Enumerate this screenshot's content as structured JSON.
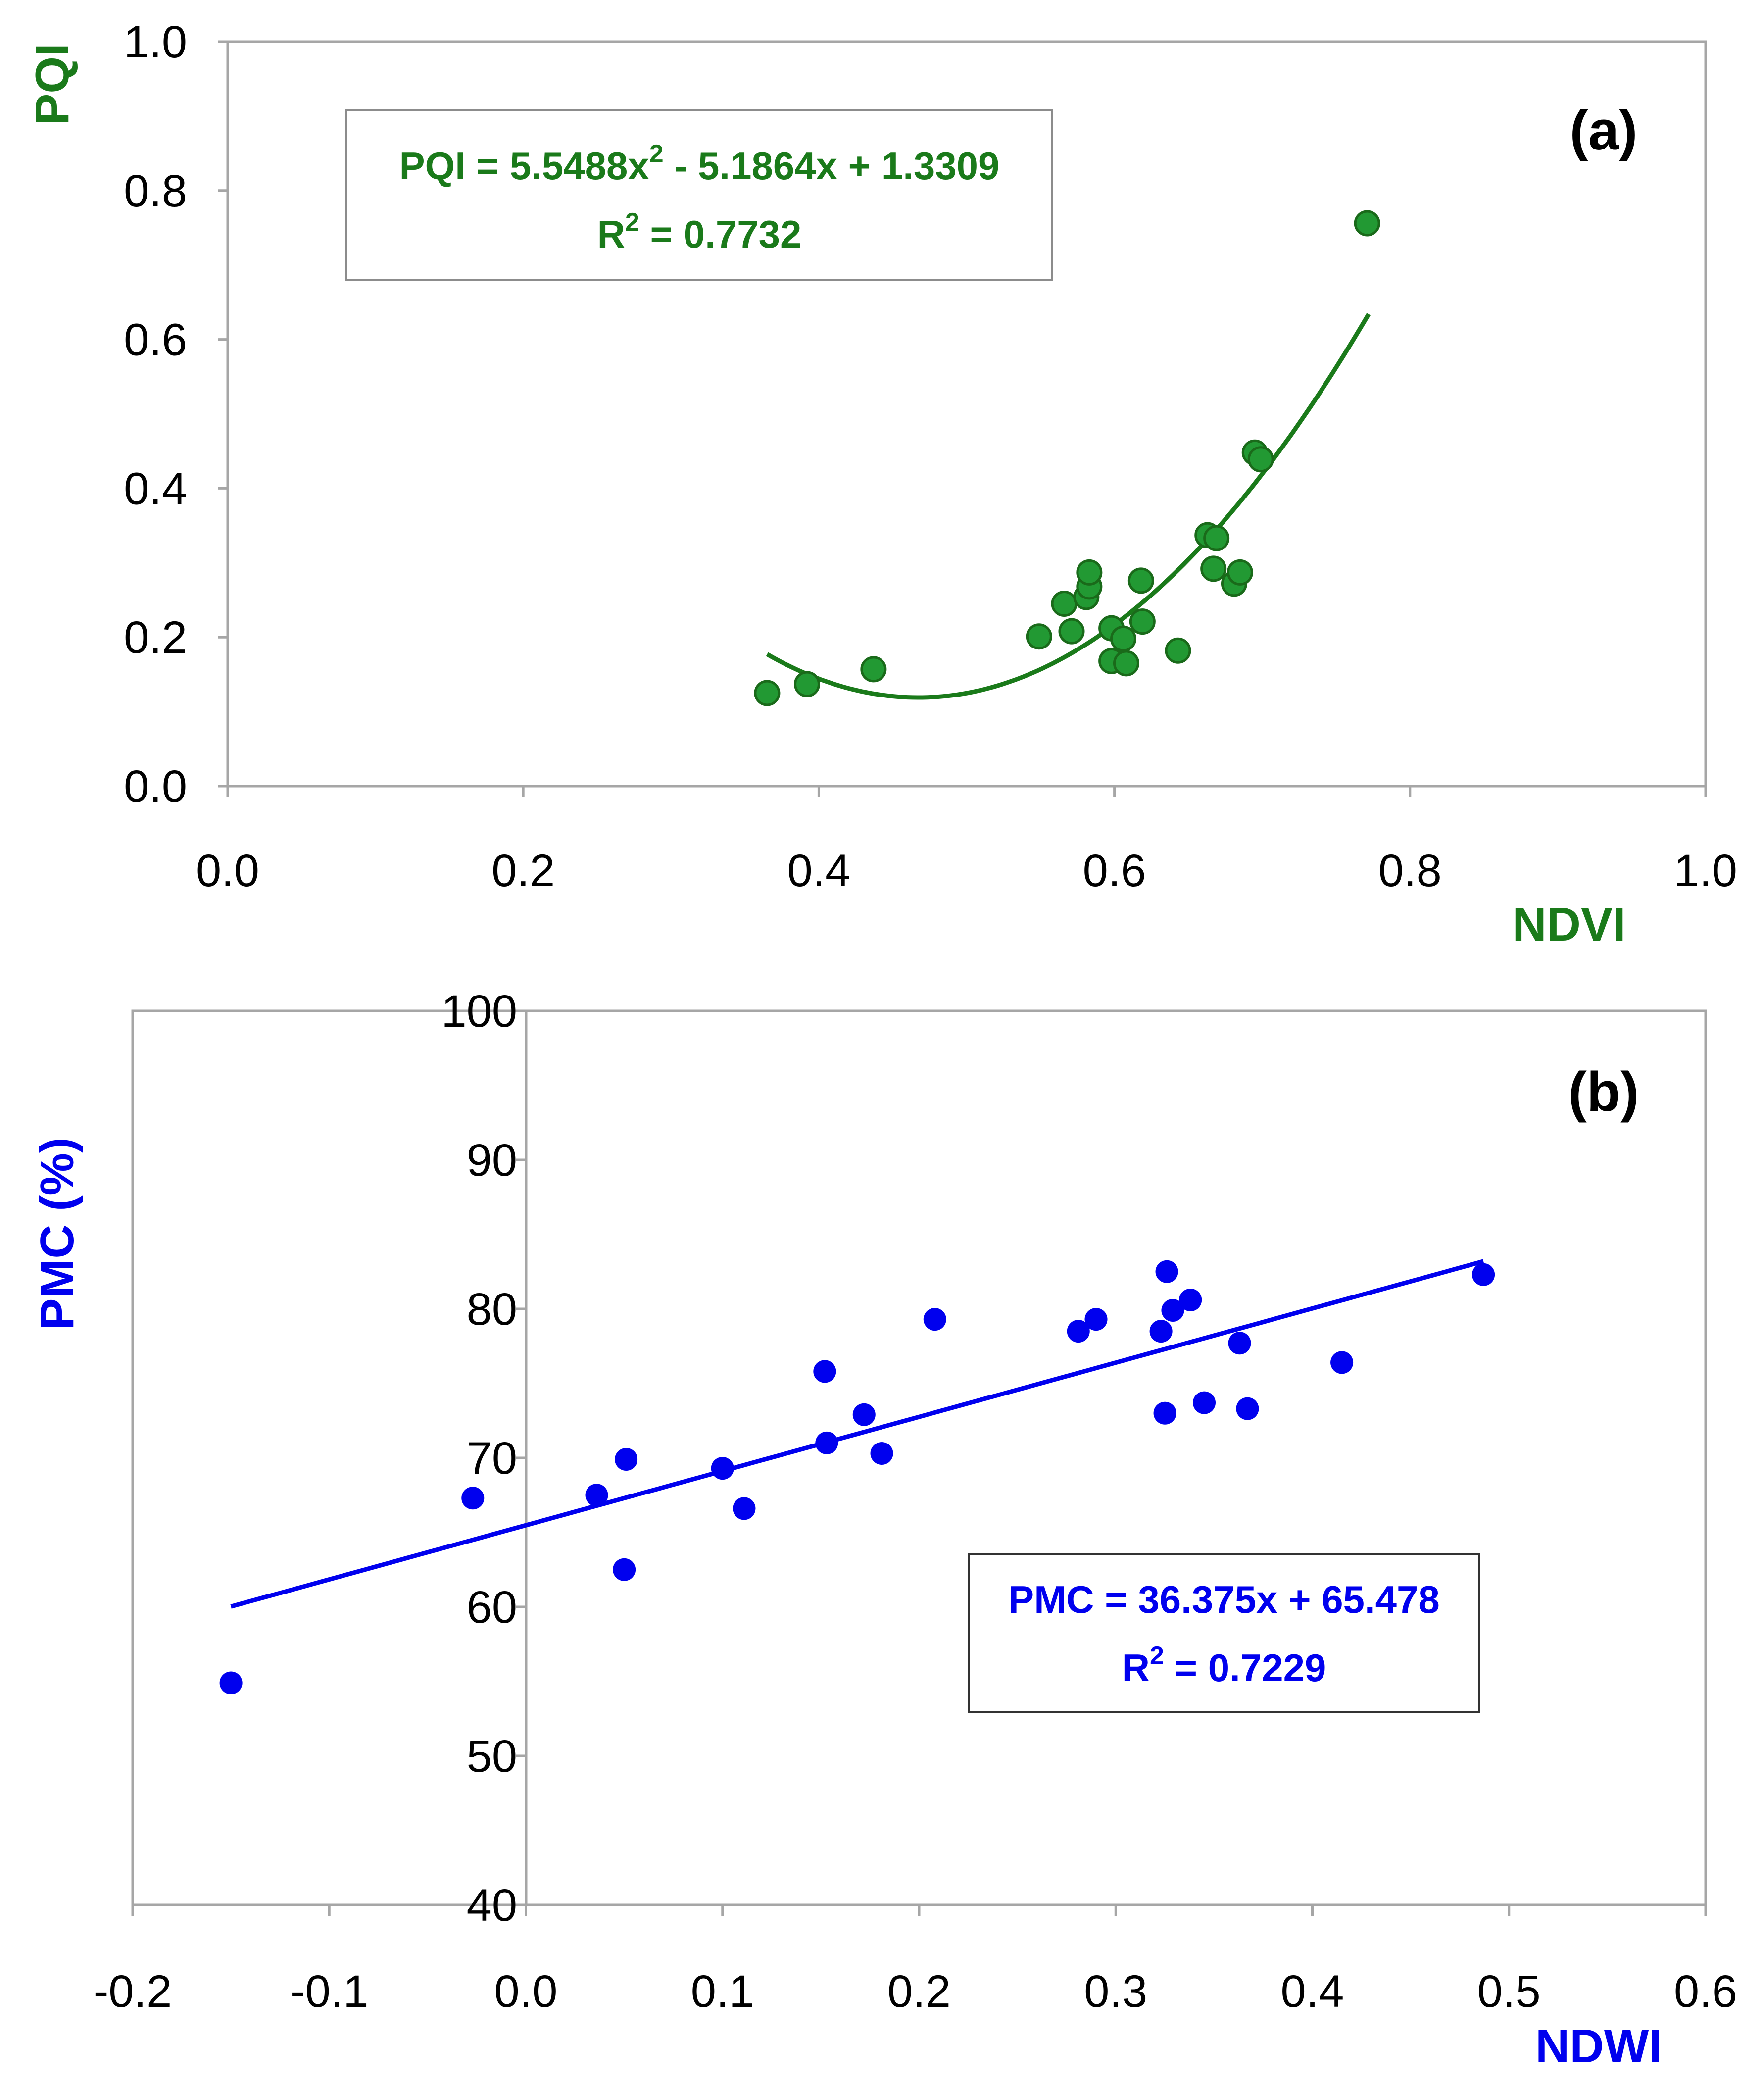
{
  "chart_data": [
    {
      "type": "scatter",
      "panel_label": "(a)",
      "xlabel": "NDVI",
      "ylabel": "PQI",
      "xlim": [
        0,
        1
      ],
      "ylim": [
        0,
        1
      ],
      "x_ticks": [
        "0.0",
        "0.2",
        "0.4",
        "0.6",
        "0.8",
        "1.0"
      ],
      "y_ticks": [
        "0.0",
        "0.2",
        "0.4",
        "0.6",
        "0.8",
        "1.0"
      ],
      "color": "#1a7a1a",
      "marker_fill": "#229933",
      "equation": {
        "line1_prefix": "PQI = 5.5488x",
        "line1_sup": "2",
        "line1_suffix": " - 5.1864x + 1.3309",
        "line2_prefix": "R",
        "line2_sup": "2",
        "line2_suffix": " = 0.7732"
      },
      "fit": {
        "kind": "polynomial",
        "coefficients": [
          5.5488,
          -5.1864,
          1.3309
        ],
        "x_range": [
          0.365,
          0.772
        ]
      },
      "points": [
        {
          "x": 0.365,
          "y": 0.125
        },
        {
          "x": 0.392,
          "y": 0.137
        },
        {
          "x": 0.437,
          "y": 0.157
        },
        {
          "x": 0.549,
          "y": 0.201
        },
        {
          "x": 0.566,
          "y": 0.245
        },
        {
          "x": 0.571,
          "y": 0.208
        },
        {
          "x": 0.581,
          "y": 0.254
        },
        {
          "x": 0.583,
          "y": 0.268
        },
        {
          "x": 0.583,
          "y": 0.287
        },
        {
          "x": 0.598,
          "y": 0.212
        },
        {
          "x": 0.598,
          "y": 0.168
        },
        {
          "x": 0.606,
          "y": 0.198
        },
        {
          "x": 0.608,
          "y": 0.165
        },
        {
          "x": 0.618,
          "y": 0.276
        },
        {
          "x": 0.619,
          "y": 0.221
        },
        {
          "x": 0.643,
          "y": 0.182
        },
        {
          "x": 0.663,
          "y": 0.337
        },
        {
          "x": 0.667,
          "y": 0.292
        },
        {
          "x": 0.669,
          "y": 0.333
        },
        {
          "x": 0.681,
          "y": 0.272
        },
        {
          "x": 0.685,
          "y": 0.287
        },
        {
          "x": 0.695,
          "y": 0.448
        },
        {
          "x": 0.699,
          "y": 0.439
        },
        {
          "x": 0.771,
          "y": 0.756
        }
      ]
    },
    {
      "type": "scatter",
      "panel_label": "(b)",
      "xlabel": "NDWI",
      "ylabel": "PMC (%)",
      "xlim": [
        -0.2,
        0.6
      ],
      "ylim": [
        40,
        100
      ],
      "x_ticks": [
        "-0.2",
        "-0.1",
        "0.0",
        "0.1",
        "0.2",
        "0.3",
        "0.4",
        "0.5",
        "0.6"
      ],
      "y_ticks": [
        "40",
        "50",
        "60",
        "70",
        "80",
        "90",
        "100"
      ],
      "color": "#0000ee",
      "marker_fill": "#0000ee",
      "equation": {
        "line1_prefix": "PMC = 36.375x + 65.478",
        "line1_sup": "",
        "line1_suffix": "",
        "line2_prefix": "R",
        "line2_sup": "2",
        "line2_suffix": " = 0.7229"
      },
      "fit": {
        "kind": "linear",
        "coefficients": [
          36.375,
          65.478
        ],
        "x_range": [
          -0.15,
          0.487
        ]
      },
      "points": [
        {
          "x": -0.15,
          "y": 54.9
        },
        {
          "x": -0.027,
          "y": 67.3
        },
        {
          "x": 0.036,
          "y": 67.5
        },
        {
          "x": 0.05,
          "y": 62.5
        },
        {
          "x": 0.051,
          "y": 69.9
        },
        {
          "x": 0.1,
          "y": 69.3
        },
        {
          "x": 0.111,
          "y": 66.6
        },
        {
          "x": 0.152,
          "y": 75.8
        },
        {
          "x": 0.153,
          "y": 71.0
        },
        {
          "x": 0.172,
          "y": 72.9
        },
        {
          "x": 0.181,
          "y": 70.3
        },
        {
          "x": 0.208,
          "y": 79.3
        },
        {
          "x": 0.281,
          "y": 78.5
        },
        {
          "x": 0.29,
          "y": 79.3
        },
        {
          "x": 0.323,
          "y": 78.5
        },
        {
          "x": 0.325,
          "y": 73.0
        },
        {
          "x": 0.326,
          "y": 82.5
        },
        {
          "x": 0.329,
          "y": 79.9
        },
        {
          "x": 0.338,
          "y": 80.6
        },
        {
          "x": 0.345,
          "y": 73.7
        },
        {
          "x": 0.363,
          "y": 77.7
        },
        {
          "x": 0.367,
          "y": 73.3
        },
        {
          "x": 0.415,
          "y": 76.4
        },
        {
          "x": 0.487,
          "y": 82.3
        }
      ]
    }
  ]
}
